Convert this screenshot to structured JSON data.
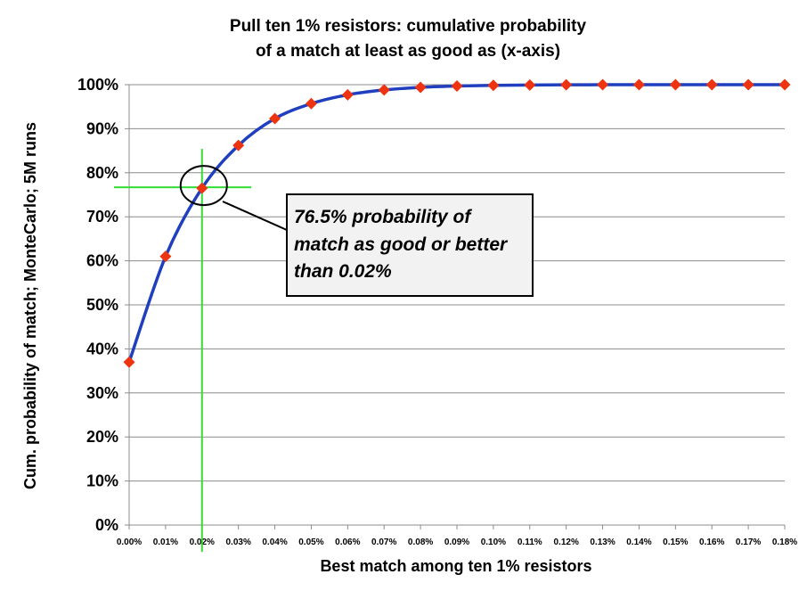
{
  "chart_data": {
    "type": "line",
    "title_lines": [
      "Pull ten 1% resistors: cumulative probability",
      "of a match at least as good as (x-axis)"
    ],
    "xlabel": "Best match among ten 1% resistors",
    "ylabel": "Cum. probability of match; MonteCarlo; 5M runs",
    "x_tick_labels": [
      "0.00%",
      "0.01%",
      "0.02%",
      "0.03%",
      "0.04%",
      "0.05%",
      "0.06%",
      "0.07%",
      "0.08%",
      "0.09%",
      "0.10%",
      "0.11%",
      "0.12%",
      "0.13%",
      "0.14%",
      "0.15%",
      "0.16%",
      "0.17%",
      "0.18%"
    ],
    "y_tick_labels": [
      "0%",
      "10%",
      "20%",
      "30%",
      "40%",
      "50%",
      "60%",
      "70%",
      "80%",
      "90%",
      "100%"
    ],
    "xlim": [
      0,
      0.18
    ],
    "ylim": [
      0,
      100
    ],
    "grid": "horizontal",
    "x": [
      0.0,
      0.01,
      0.02,
      0.03,
      0.04,
      0.05,
      0.06,
      0.07,
      0.08,
      0.09,
      0.1,
      0.11,
      0.12,
      0.13,
      0.14,
      0.15,
      0.16,
      0.17,
      0.18
    ],
    "series": [
      {
        "values": [
          37.0,
          61.0,
          76.5,
          86.2,
          92.3,
          95.7,
          97.7,
          98.8,
          99.4,
          99.7,
          99.85,
          99.93,
          99.97,
          99.99,
          100,
          100,
          100,
          100,
          100
        ],
        "line_color": "#1f3fbf",
        "marker_color": "#ee3311"
      }
    ],
    "highlight": {
      "x": 0.02,
      "y": 76.5,
      "color": "#33dd33"
    },
    "annotation_lines": [
      "76.5% probability of",
      "match as good or better",
      "than 0.02%"
    ]
  }
}
